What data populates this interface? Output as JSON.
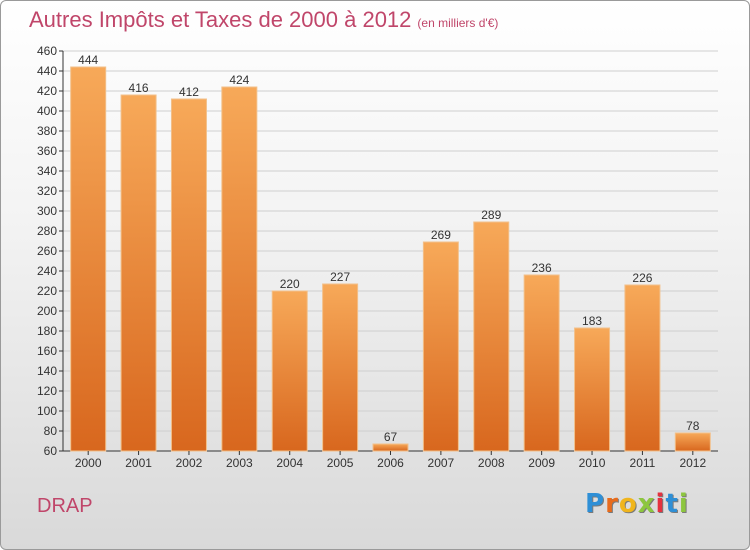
{
  "header": {
    "title": "Autres Impôts et Taxes de 2000 à 2012",
    "subtitle": "(en milliers d'€)"
  },
  "footer": {
    "label": "DRAP",
    "brand": {
      "name": "Proxiti",
      "letter_colors": [
        "#2e8fd6",
        "#e86b1c",
        "#f0b51d",
        "#8dc63f",
        "#e5323f",
        "#2e8fd6",
        "#8dc63f"
      ]
    }
  },
  "colors": {
    "bar_light": "#f7a959",
    "bar_dark": "#d8671e",
    "title": "#c0466a",
    "grid": "#cfcfcf",
    "axis": "#333333"
  },
  "chart_data": {
    "type": "bar",
    "title": "Autres Impôts et Taxes de 2000 à 2012",
    "subtitle": "(en milliers d'€)",
    "categories": [
      "2000",
      "2001",
      "2002",
      "2003",
      "2004",
      "2005",
      "2006",
      "2007",
      "2008",
      "2009",
      "2010",
      "2011",
      "2012"
    ],
    "values": [
      444,
      416,
      412,
      424,
      220,
      227,
      67,
      269,
      289,
      236,
      183,
      226,
      78
    ],
    "ylim": [
      60,
      460
    ],
    "yticks": [
      60,
      80,
      100,
      120,
      140,
      160,
      180,
      200,
      220,
      240,
      260,
      280,
      300,
      320,
      340,
      360,
      380,
      400,
      420,
      440,
      460
    ],
    "grid": true,
    "data_labels": true,
    "legend": "none"
  }
}
